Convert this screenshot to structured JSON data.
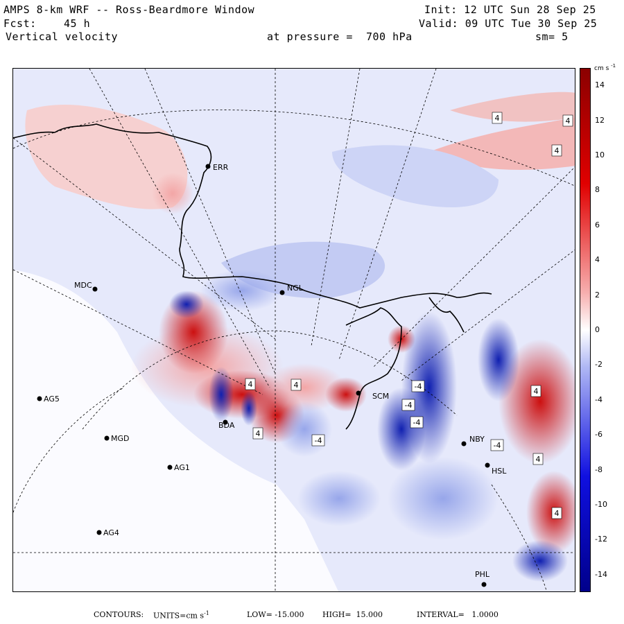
{
  "header": {
    "title": "AMPS 8-km WRF -- Ross-Beardmore Window",
    "init": "Init: 12 UTC Sun 28 Sep 25",
    "fcst_label": "Fcst:",
    "fcst_value": "45 h",
    "valid": "Valid: 09 UTC Tue 30 Sep 25",
    "field": "Vertical velocity",
    "level": "at pressure =  700 hPa",
    "smoothing": "sm= 5"
  },
  "colorbar": {
    "unit": "cm s",
    "unit_exp": "-1",
    "ticks": [
      "14",
      "12",
      "10",
      "8",
      "6",
      "4",
      "2",
      "0",
      "-2",
      "-4",
      "-6",
      "-8",
      "-10",
      "-12",
      "-14"
    ],
    "low_color": "#00008b",
    "mid_color": "#ffffff",
    "high_color": "#8b0000"
  },
  "stations": [
    {
      "id": "MDC",
      "label": "MDC"
    },
    {
      "id": "NGL",
      "label": "NGL"
    },
    {
      "id": "AG5",
      "label": "AG5"
    },
    {
      "id": "MGD",
      "label": "MGD"
    },
    {
      "id": "AG1",
      "label": "AG1"
    },
    {
      "id": "AG4",
      "label": "AG4"
    },
    {
      "id": "NBY",
      "label": "NBY"
    },
    {
      "id": "PHL",
      "label": "PHL"
    },
    {
      "id": "HSL",
      "label": "HSL"
    },
    {
      "id": "SCM",
      "label": "SCM"
    },
    {
      "id": "ERR",
      "label": "ERR"
    },
    {
      "id": "BDA",
      "label": "BDA"
    }
  ],
  "contour_labels": [
    "4",
    "4",
    "4",
    "4",
    "4",
    "-4",
    "-4",
    "-4",
    "4",
    "-4",
    "-4",
    "4",
    "4",
    "4"
  ],
  "footer": {
    "contours": "CONTOURS:",
    "units": "UNITS=cm s",
    "units_exp": "-1",
    "low": "LOW= -15.000",
    "high": "HIGH=  15.000",
    "interval": "INTERVAL=   1.0000"
  }
}
